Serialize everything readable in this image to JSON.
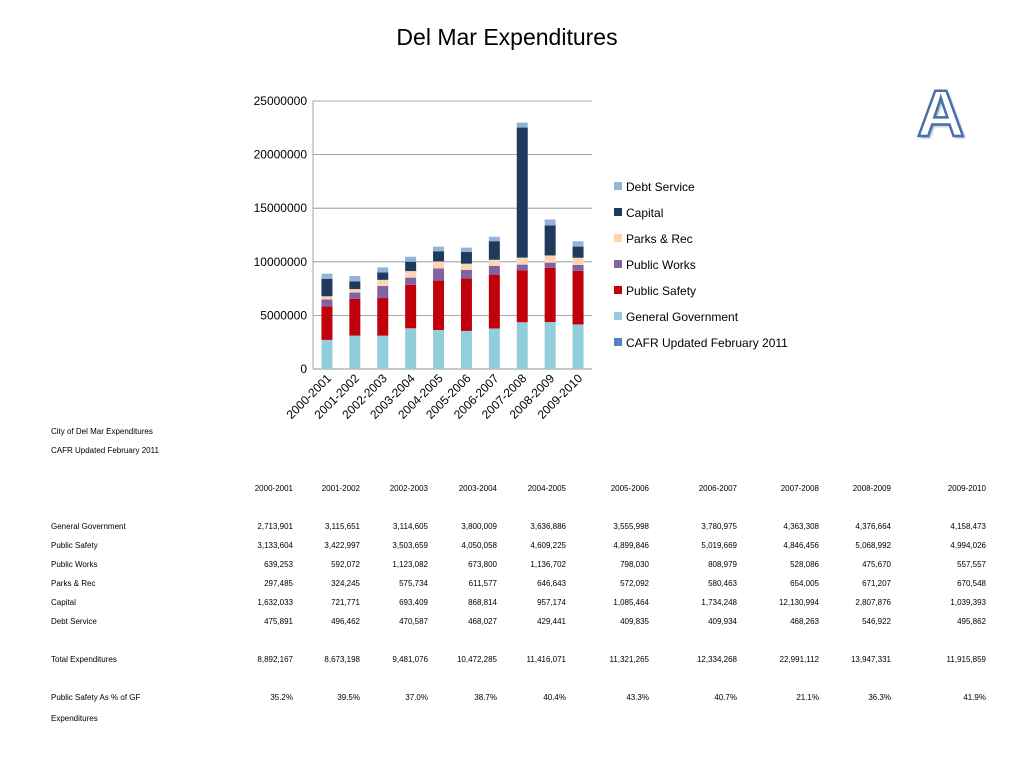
{
  "title": "Del Mar Expenditures",
  "badge": "A",
  "subtitle1": "City of Del Mar Expenditures",
  "subtitle2": "CAFR Updated February 2011",
  "years": [
    "2000-2001",
    "2001-2002",
    "2002-2003",
    "2003-2004",
    "2004-2005",
    "2005-2006",
    "2006-2007",
    "2007-2008",
    "2008-2009",
    "2009-2010"
  ],
  "rows": [
    {
      "label": "General Government",
      "values": [
        "2,713,901",
        "3,115,651",
        "3,114,605",
        "3,800,009",
        "3,636,886",
        "3,555,998",
        "3,780,975",
        "4,363,308",
        "4,376,664",
        "4,158,473"
      ]
    },
    {
      "label": "Public Safety",
      "values": [
        "3,133,604",
        "3,422,997",
        "3,503,659",
        "4,050,058",
        "4,609,225",
        "4,899,846",
        "5,019,669",
        "4,846,456",
        "5,068,992",
        "4,994,026"
      ]
    },
    {
      "label": "Public Works",
      "values": [
        "639,253",
        "592,072",
        "1,123,082",
        "673,800",
        "1,136,702",
        "798,030",
        "808,979",
        "528,086",
        "475,670",
        "557,557"
      ]
    },
    {
      "label": "Parks & Rec",
      "values": [
        "297,485",
        "324,245",
        "575,734",
        "611,577",
        "646,643",
        "572,092",
        "580,463",
        "654,005",
        "671,207",
        "670,548"
      ]
    },
    {
      "label": "Capital",
      "values": [
        "1,632,033",
        "721,771",
        "693,409",
        "868,814",
        "957,174",
        "1,085,464",
        "1,734,248",
        "12,130,994",
        "2,807,876",
        "1,039,393"
      ]
    },
    {
      "label": "Debt Service",
      "values": [
        "475,891",
        "496,462",
        "470,587",
        "468,027",
        "429,441",
        "409,835",
        "409,934",
        "468,263",
        "546,922",
        "495,862"
      ]
    }
  ],
  "total": {
    "label": "Total Expenditures",
    "values": [
      "8,892,167",
      "8,673,198",
      "9,481,076",
      "10,472,285",
      "11,416,071",
      "11,321,265",
      "12,334,268",
      "22,991,112",
      "13,947,331",
      "11,915,859"
    ]
  },
  "ps_pct": {
    "label": "Public Safety As % of GF",
    "label2": "Expenditures",
    "values": [
      "35.2%",
      "39.5%",
      "37.0%",
      "38.7%",
      "40.4%",
      "43.3%",
      "40.7%",
      "21.1%",
      "36.3%",
      "41.9%"
    ]
  },
  "chart_data": {
    "type": "bar",
    "stacked": true,
    "title": "Del Mar Expenditures",
    "categories": [
      "2000-2001",
      "2001-2002",
      "2002-2003",
      "2003-2004",
      "2004-2005",
      "2005-2006",
      "2006-2007",
      "2007-2008",
      "2008-2009",
      "2009-2010"
    ],
    "ylim": [
      0,
      25000000
    ],
    "yticks": [
      "0",
      "5000000",
      "10000000",
      "15000000",
      "20000000",
      "25000000"
    ],
    "ytick_values": [
      0,
      5000000,
      10000000,
      15000000,
      20000000,
      25000000
    ],
    "grid": true,
    "legend_position": "right",
    "series": [
      {
        "name": "CAFR Updated February 2011",
        "color": "#4f81bd",
        "values": [
          0,
          0,
          0,
          0,
          0,
          0,
          0,
          0,
          0,
          0
        ]
      },
      {
        "name": "General Government",
        "color": "#92cddc",
        "values": [
          2713901,
          3115651,
          3114605,
          3800009,
          3636886,
          3555998,
          3780975,
          4363308,
          4376664,
          4158473
        ]
      },
      {
        "name": "Public Safety",
        "color": "#c0000b",
        "values": [
          3133604,
          3422997,
          3503659,
          4050058,
          4609225,
          4899846,
          5019669,
          4846456,
          5068992,
          4994026
        ]
      },
      {
        "name": "Public Works",
        "color": "#8064a2",
        "values": [
          639253,
          592072,
          1123082,
          673800,
          1136702,
          798030,
          808979,
          528086,
          475670,
          557557
        ]
      },
      {
        "name": "Parks & Rec",
        "color": "#fcd5b5",
        "values": [
          297485,
          324245,
          575734,
          611577,
          646643,
          572092,
          580463,
          654005,
          671207,
          670548
        ]
      },
      {
        "name": "Capital",
        "color": "#1f3a5c",
        "values": [
          1632033,
          721771,
          693409,
          868814,
          957174,
          1085464,
          1734248,
          12130994,
          2807876,
          1039393
        ]
      },
      {
        "name": "Debt Service",
        "color": "#95b3d7",
        "values": [
          475891,
          496462,
          470587,
          468027,
          429441,
          409835,
          409934,
          468263,
          546922,
          495862
        ]
      }
    ]
  }
}
